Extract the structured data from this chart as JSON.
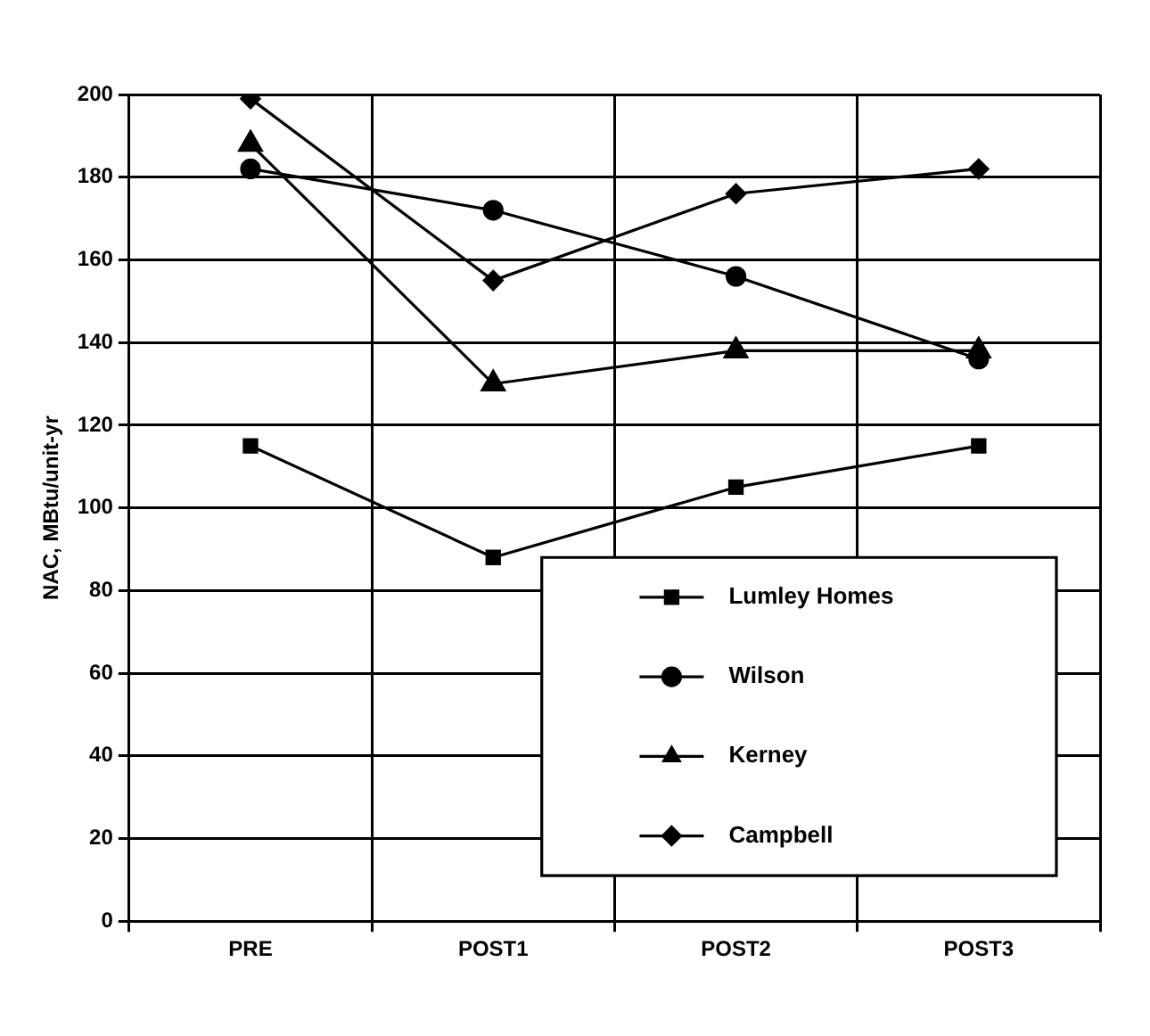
{
  "chart_data": {
    "type": "line",
    "ylabel": "NAC, MBtu/unit-yr",
    "categories": [
      "PRE",
      "POST1",
      "POST2",
      "POST3"
    ],
    "ylim": [
      0,
      200
    ],
    "yticks": [
      0,
      20,
      40,
      60,
      80,
      100,
      120,
      140,
      160,
      180,
      200
    ],
    "grid": true,
    "legend": "bottom right",
    "line_style": "solid",
    "series": [
      {
        "name": "Lumley Homes",
        "color": "#000000",
        "marker": "square",
        "values": [
          115,
          88,
          105,
          115
        ]
      },
      {
        "name": "Wilson",
        "color": "#000000",
        "marker": "circle",
        "values": [
          182,
          172,
          156,
          136
        ]
      },
      {
        "name": "Kerney",
        "color": "#000000",
        "marker": "triangle",
        "values": [
          188,
          130,
          138,
          138
        ]
      },
      {
        "name": "Campbell",
        "color": "#000000",
        "marker": "diamond",
        "values": [
          199,
          155,
          176,
          182
        ]
      }
    ]
  }
}
